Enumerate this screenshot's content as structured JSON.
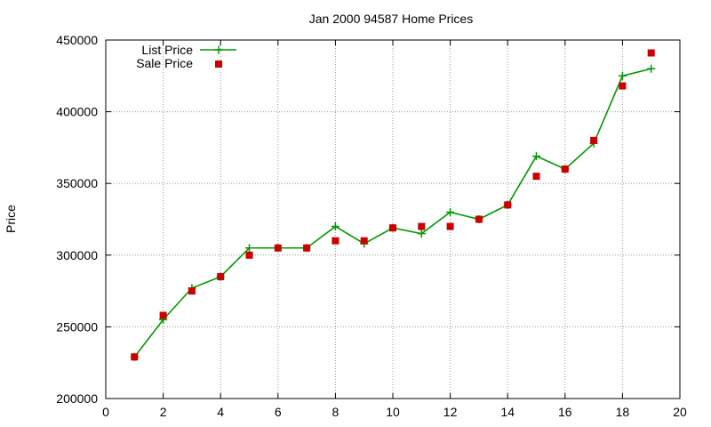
{
  "chart_data": {
    "type": "line",
    "title": "Jan 2000 94587 Home Prices",
    "xlabel": "",
    "ylabel": "Price",
    "xlim": [
      0,
      20
    ],
    "ylim": [
      200000,
      450000
    ],
    "x_ticks": [
      0,
      2,
      4,
      6,
      8,
      10,
      12,
      14,
      16,
      18,
      20
    ],
    "y_ticks": [
      200000,
      250000,
      300000,
      350000,
      400000,
      450000
    ],
    "grid": true,
    "legend_position": "top-left",
    "series": [
      {
        "name": "List Price",
        "style": "line-with-plus-markers",
        "color": "#009900",
        "x": [
          1,
          2,
          3,
          4,
          5,
          6,
          7,
          8,
          9,
          10,
          11,
          12,
          13,
          14,
          15,
          16,
          17,
          18,
          19
        ],
        "y": [
          229000,
          255000,
          277000,
          285000,
          305000,
          305000,
          305000,
          320000,
          308000,
          319000,
          315000,
          330000,
          325000,
          335000,
          369000,
          360000,
          378000,
          425000,
          430000
        ]
      },
      {
        "name": "Sale Price",
        "style": "square-markers",
        "color": "#cc0000",
        "x": [
          1,
          2,
          3,
          4,
          5,
          6,
          7,
          8,
          9,
          10,
          11,
          12,
          13,
          14,
          15,
          16,
          17,
          18,
          19
        ],
        "y": [
          229000,
          258000,
          275000,
          285000,
          300000,
          305000,
          305000,
          310000,
          310000,
          319000,
          320000,
          320000,
          325000,
          335000,
          355000,
          360000,
          380000,
          418000,
          441000
        ]
      }
    ]
  }
}
